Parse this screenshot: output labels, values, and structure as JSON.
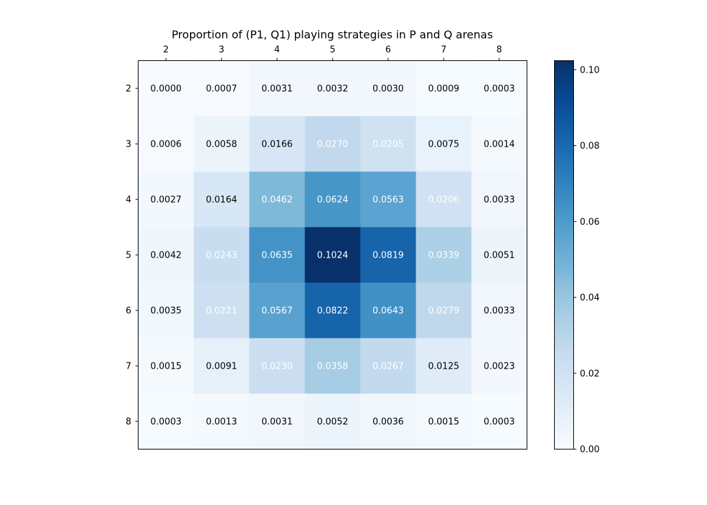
{
  "chart_data": {
    "type": "heatmap",
    "title": "Proportion of (P1, Q1) playing strategies in P and Q arenas",
    "xlabel": "",
    "ylabel": "",
    "x_categories": [
      "2",
      "3",
      "4",
      "5",
      "6",
      "7",
      "8"
    ],
    "y_categories": [
      "2",
      "3",
      "4",
      "5",
      "6",
      "7",
      "8"
    ],
    "x_axis_position": "top",
    "values": [
      [
        0.0,
        0.0007,
        0.0031,
        0.0032,
        0.003,
        0.0009,
        0.0003
      ],
      [
        0.0006,
        0.0058,
        0.0166,
        0.027,
        0.0205,
        0.0075,
        0.0014
      ],
      [
        0.0027,
        0.0164,
        0.0462,
        0.0624,
        0.0563,
        0.0206,
        0.0033
      ],
      [
        0.0042,
        0.0243,
        0.0635,
        0.1024,
        0.0819,
        0.0339,
        0.0051
      ],
      [
        0.0035,
        0.0221,
        0.0567,
        0.0822,
        0.0643,
        0.0279,
        0.0033
      ],
      [
        0.0015,
        0.0091,
        0.023,
        0.0358,
        0.0267,
        0.0125,
        0.0023
      ],
      [
        0.0003,
        0.0013,
        0.0031,
        0.0052,
        0.0036,
        0.0015,
        0.0003
      ]
    ],
    "cell_labels": [
      [
        "0.0000",
        "0.0007",
        "0.0031",
        "0.0032",
        "0.0030",
        "0.0009",
        "0.0003"
      ],
      [
        "0.0006",
        "0.0058",
        "0.0166",
        "0.0270",
        "0.0205",
        "0.0075",
        "0.0014"
      ],
      [
        "0.0027",
        "0.0164",
        "0.0462",
        "0.0624",
        "0.0563",
        "0.0206",
        "0.0033"
      ],
      [
        "0.0042",
        "0.0243",
        "0.0635",
        "0.1024",
        "0.0819",
        "0.0339",
        "0.0051"
      ],
      [
        "0.0035",
        "0.0221",
        "0.0567",
        "0.0822",
        "0.0643",
        "0.0279",
        "0.0033"
      ],
      [
        "0.0015",
        "0.0091",
        "0.0230",
        "0.0358",
        "0.0267",
        "0.0125",
        "0.0023"
      ],
      [
        "0.0003",
        "0.0013",
        "0.0031",
        "0.0052",
        "0.0036",
        "0.0015",
        "0.0003"
      ]
    ],
    "value_range": [
      0,
      0.1024
    ],
    "colormap": "Blues",
    "colorbar": {
      "ticks": [
        0.0,
        0.02,
        0.04,
        0.06,
        0.08,
        0.1
      ],
      "tick_labels": [
        "0.00",
        "0.02",
        "0.04",
        "0.06",
        "0.08",
        "0.10"
      ]
    },
    "grid": false
  }
}
